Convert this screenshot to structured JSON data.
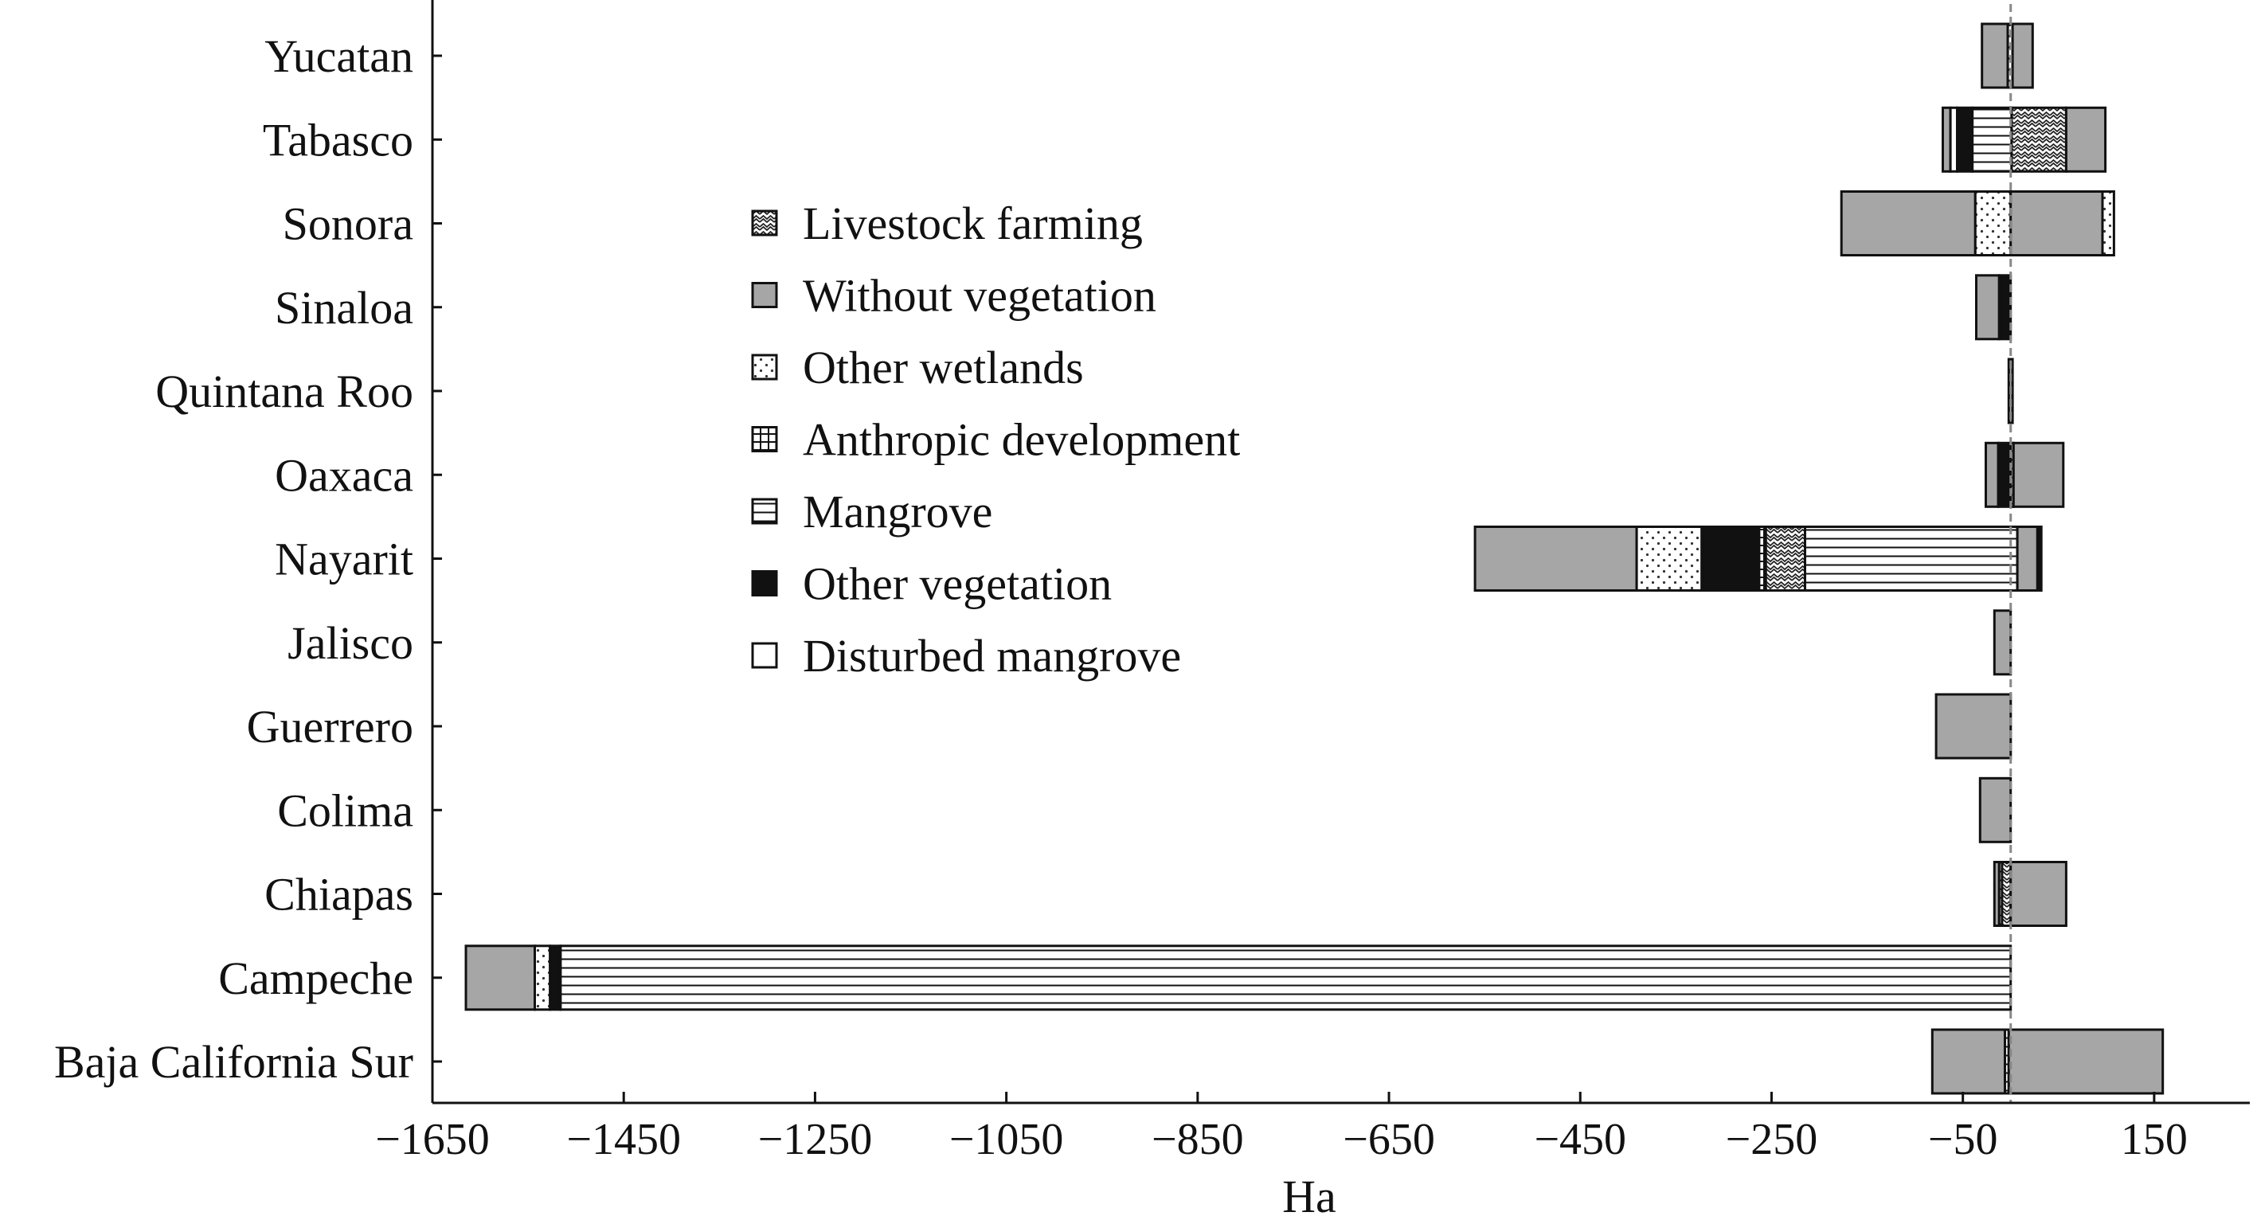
{
  "chart_data": {
    "type": "bar",
    "orientation": "horizontal",
    "stacked": true,
    "xlabel": "Ha",
    "xlim": [
      -1650,
      250
    ],
    "xticks": [
      -1650,
      -1450,
      -1250,
      -1050,
      -850,
      -650,
      -450,
      -250,
      -50,
      150
    ],
    "xtick_labels": [
      "−1650",
      "−1450",
      "−1250",
      "−1050",
      "−850",
      "−650",
      "−450",
      "−250",
      "−50",
      "150"
    ],
    "categories": [
      "Yucatan",
      "Tabasco",
      "Sonora",
      "Sinaloa",
      "Quintana Roo",
      "Oaxaca",
      "Nayarit",
      "Jalisco",
      "Guerrero",
      "Colima",
      "Chiapas",
      "Campeche",
      "Baja California Sur"
    ],
    "legend": {
      "placement": "center-left",
      "entries": [
        {
          "key": "livestock",
          "label": "Livestock farming"
        },
        {
          "key": "without_veg",
          "label": "Without vegetation"
        },
        {
          "key": "other_wetlands",
          "label": "Other wetlands"
        },
        {
          "key": "anthropic",
          "label": "Anthropic development"
        },
        {
          "key": "mangrove",
          "label": "Mangrove"
        },
        {
          "key": "other_veg",
          "label": "Other vegetation"
        },
        {
          "key": "disturbed",
          "label": "Disturbed mangrove"
        }
      ]
    },
    "bars": [
      {
        "category": "Yucatan",
        "segments": [
          {
            "key": "without_veg",
            "from": -30,
            "to": -3
          },
          {
            "key": "other_wetlands",
            "from": -3,
            "to": 2
          },
          {
            "key": "without_veg",
            "from": 2,
            "to": 23
          }
        ]
      },
      {
        "category": "Tabasco",
        "segments": [
          {
            "key": "without_veg",
            "from": -71,
            "to": -63
          },
          {
            "key": "disturbed",
            "from": -63,
            "to": -56
          },
          {
            "key": "other_veg",
            "from": -56,
            "to": -40
          },
          {
            "key": "mangrove",
            "from": -40,
            "to": 1
          },
          {
            "key": "livestock",
            "from": 1,
            "to": 58
          },
          {
            "key": "without_veg",
            "from": 58,
            "to": 99
          }
        ]
      },
      {
        "category": "Sonora",
        "segments": [
          {
            "key": "without_veg",
            "from": -177,
            "to": -37
          },
          {
            "key": "other_wetlands",
            "from": -37,
            "to": 0
          },
          {
            "key": "without_veg",
            "from": 0,
            "to": 96
          },
          {
            "key": "other_wetlands",
            "from": 96,
            "to": 108
          }
        ]
      },
      {
        "category": "Sinaloa",
        "segments": [
          {
            "key": "without_veg",
            "from": -36,
            "to": -12
          },
          {
            "key": "other_veg",
            "from": -12,
            "to": 0
          }
        ]
      },
      {
        "category": "Quintana Roo",
        "segments": [
          {
            "key": "without_veg",
            "from": -2,
            "to": 2
          }
        ]
      },
      {
        "category": "Oaxaca",
        "segments": [
          {
            "key": "without_veg",
            "from": -26,
            "to": -13
          },
          {
            "key": "other_veg",
            "from": -13,
            "to": 0
          },
          {
            "key": "mangrove",
            "from": 0,
            "to": 3
          },
          {
            "key": "without_veg",
            "from": 3,
            "to": 55
          }
        ]
      },
      {
        "category": "Nayarit",
        "segments": [
          {
            "key": "without_veg",
            "from": -560,
            "to": -391
          },
          {
            "key": "other_wetlands",
            "from": -391,
            "to": -323
          },
          {
            "key": "other_veg",
            "from": -323,
            "to": -263
          },
          {
            "key": "anthropic",
            "from": -263,
            "to": -256
          },
          {
            "key": "livestock",
            "from": -256,
            "to": -215
          },
          {
            "key": "mangrove",
            "from": -215,
            "to": 7
          },
          {
            "key": "without_veg",
            "from": 7,
            "to": 28
          },
          {
            "key": "other_veg",
            "from": 28,
            "to": 32
          }
        ]
      },
      {
        "category": "Jalisco",
        "segments": [
          {
            "key": "without_veg",
            "from": -17,
            "to": 0
          }
        ]
      },
      {
        "category": "Guerrero",
        "segments": [
          {
            "key": "without_veg",
            "from": -78,
            "to": 0
          }
        ]
      },
      {
        "category": "Colima",
        "segments": [
          {
            "key": "without_veg",
            "from": -32,
            "to": 0
          }
        ]
      },
      {
        "category": "Chiapas",
        "segments": [
          {
            "key": "without_veg",
            "from": -17,
            "to": -12
          },
          {
            "key": "mangrove",
            "from": -12,
            "to": -9
          },
          {
            "key": "livestock",
            "from": -9,
            "to": 0
          },
          {
            "key": "without_veg",
            "from": 0,
            "to": 58
          }
        ]
      },
      {
        "category": "Campeche",
        "segments": [
          {
            "key": "without_veg",
            "from": -1615,
            "to": -1543
          },
          {
            "key": "other_wetlands",
            "from": -1543,
            "to": -1527
          },
          {
            "key": "other_veg",
            "from": -1527,
            "to": -1516
          },
          {
            "key": "mangrove",
            "from": -1516,
            "to": 0
          }
        ]
      },
      {
        "category": "Baja California Sur",
        "segments": [
          {
            "key": "without_veg",
            "from": -82,
            "to": -6
          },
          {
            "key": "mangrove",
            "from": -6,
            "to": -2
          },
          {
            "key": "without_veg",
            "from": -2,
            "to": 159
          }
        ]
      }
    ]
  }
}
